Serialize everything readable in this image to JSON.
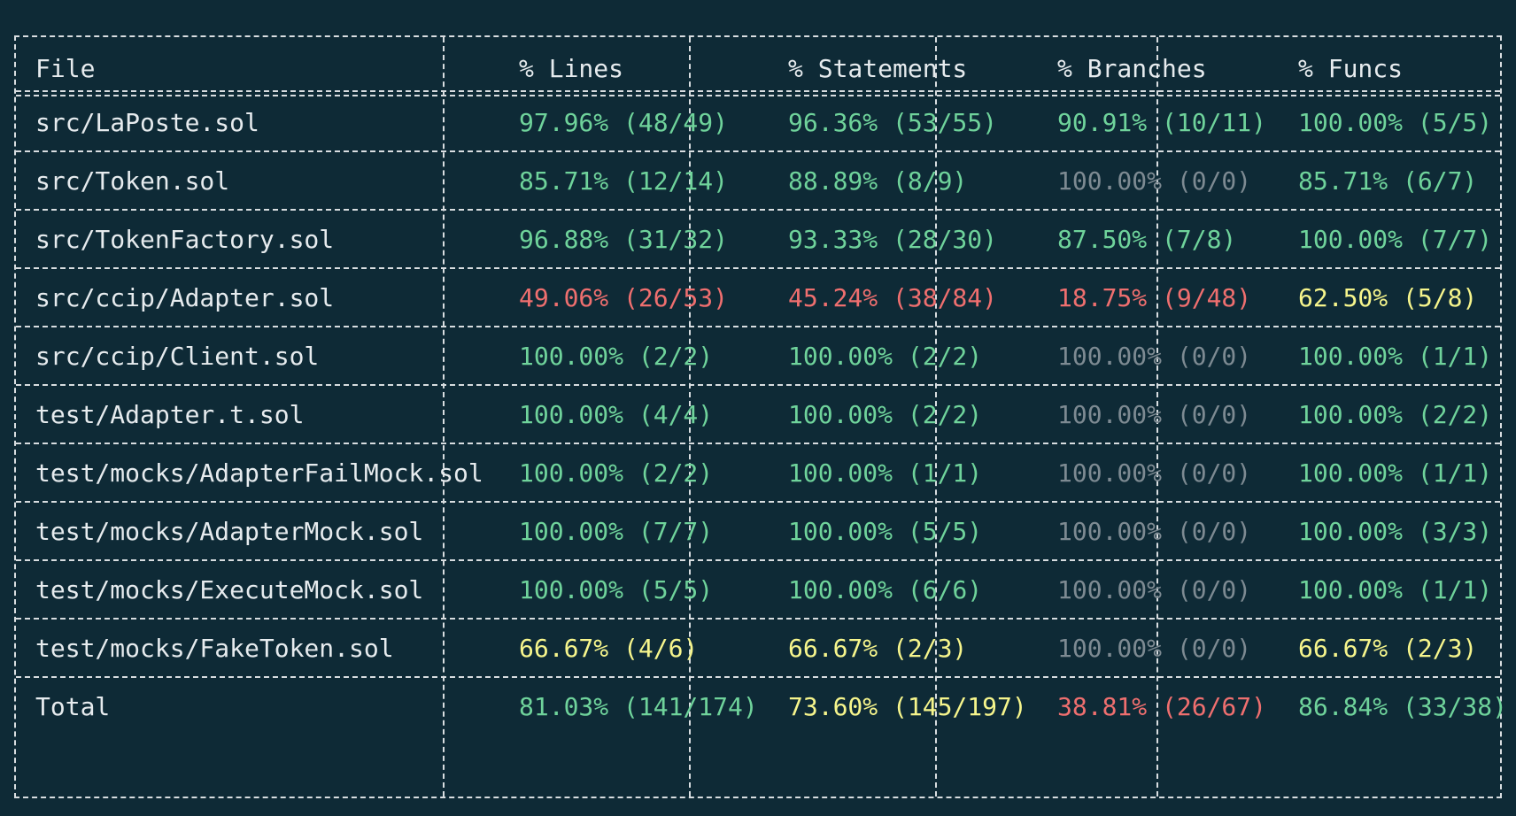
{
  "columns": [
    "File",
    "% Lines",
    "% Statements",
    "% Branches",
    "% Funcs"
  ],
  "rows": [
    {
      "file": "src/LaPoste.sol",
      "lines": "97.96% (48/49)",
      "lines_color": "green",
      "statements": "96.36% (53/55)",
      "statements_color": "green",
      "branches": "90.91% (10/11)",
      "branches_color": "green",
      "funcs": "100.00% (5/5)",
      "funcs_color": "green"
    },
    {
      "file": "src/Token.sol",
      "lines": "85.71% (12/14)",
      "lines_color": "green",
      "statements": "88.89% (8/9)",
      "statements_color": "green",
      "branches": "100.00% (0/0)",
      "branches_color": "gray",
      "funcs": "85.71% (6/7)",
      "funcs_color": "green"
    },
    {
      "file": "src/TokenFactory.sol",
      "lines": "96.88% (31/32)",
      "lines_color": "green",
      "statements": "93.33% (28/30)",
      "statements_color": "green",
      "branches": "87.50% (7/8)",
      "branches_color": "green",
      "funcs": "100.00% (7/7)",
      "funcs_color": "green"
    },
    {
      "file": "src/ccip/Adapter.sol",
      "lines": "49.06% (26/53)",
      "lines_color": "red",
      "statements": "45.24% (38/84)",
      "statements_color": "red",
      "branches": "18.75% (9/48)",
      "branches_color": "red",
      "funcs": "62.50% (5/8)",
      "funcs_color": "yellow"
    },
    {
      "file": "src/ccip/Client.sol",
      "lines": "100.00% (2/2)",
      "lines_color": "green",
      "statements": "100.00% (2/2)",
      "statements_color": "green",
      "branches": "100.00% (0/0)",
      "branches_color": "gray",
      "funcs": "100.00% (1/1)",
      "funcs_color": "green"
    },
    {
      "file": "test/Adapter.t.sol",
      "lines": "100.00% (4/4)",
      "lines_color": "green",
      "statements": "100.00% (2/2)",
      "statements_color": "green",
      "branches": "100.00% (0/0)",
      "branches_color": "gray",
      "funcs": "100.00% (2/2)",
      "funcs_color": "green"
    },
    {
      "file": "test/mocks/AdapterFailMock.sol",
      "lines": "100.00% (2/2)",
      "lines_color": "green",
      "statements": "100.00% (1/1)",
      "statements_color": "green",
      "branches": "100.00% (0/0)",
      "branches_color": "gray",
      "funcs": "100.00% (1/1)",
      "funcs_color": "green"
    },
    {
      "file": "test/mocks/AdapterMock.sol",
      "lines": "100.00% (7/7)",
      "lines_color": "green",
      "statements": "100.00% (5/5)",
      "statements_color": "green",
      "branches": "100.00% (0/0)",
      "branches_color": "gray",
      "funcs": "100.00% (3/3)",
      "funcs_color": "green"
    },
    {
      "file": "test/mocks/ExecuteMock.sol",
      "lines": "100.00% (5/5)",
      "lines_color": "green",
      "statements": "100.00% (6/6)",
      "statements_color": "green",
      "branches": "100.00% (0/0)",
      "branches_color": "gray",
      "funcs": "100.00% (1/1)",
      "funcs_color": "green"
    },
    {
      "file": "test/mocks/FakeToken.sol",
      "lines": "66.67% (4/6)",
      "lines_color": "yellow",
      "statements": "66.67% (2/3)",
      "statements_color": "yellow",
      "branches": "100.00% (0/0)",
      "branches_color": "gray",
      "funcs": "66.67% (2/3)",
      "funcs_color": "yellow"
    },
    {
      "file": "Total",
      "lines": "81.03% (141/174)",
      "lines_color": "green",
      "statements": "73.60% (145/197)",
      "statements_color": "yellow",
      "branches": "38.81% (26/67)",
      "branches_color": "red",
      "funcs": "86.84% (33/38)",
      "funcs_color": "green"
    }
  ],
  "colors": {
    "background": "#0e2a36",
    "border": "#d8dde0",
    "text": "#e6ebee",
    "green": "#6fd39b",
    "red": "#ef6f6f",
    "yellow": "#f6f58c",
    "gray": "#7d8a92"
  }
}
